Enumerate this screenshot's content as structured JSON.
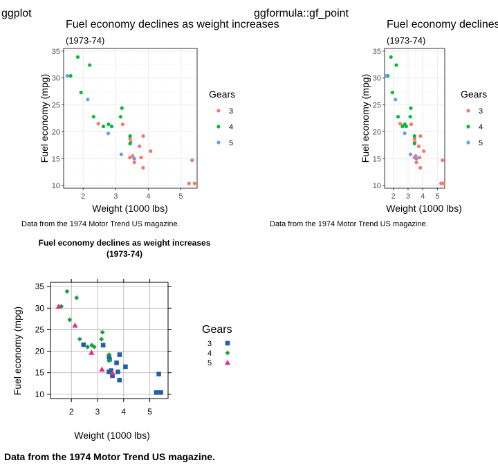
{
  "panels": {
    "ggplot_label": "ggplot",
    "ggformula_label": "ggformula::gf_point"
  },
  "chart_data": [
    {
      "id": "ggplot",
      "type": "scatter",
      "title": "Fuel economy declines as weight increases",
      "subtitle": "(1973-74)",
      "xlabel": "Weight (1000 lbs)",
      "ylabel": "Fuel economy (mpg)",
      "xlim": [
        1.4,
        5.5
      ],
      "ylim": [
        9.5,
        35.5
      ],
      "xticks": [
        2,
        3,
        4,
        5
      ],
      "yticks": [
        10,
        15,
        20,
        25,
        30,
        35
      ],
      "grid": true,
      "legend": {
        "title": "Gears",
        "placement": "right",
        "labels": [
          "3",
          "4",
          "5"
        ]
      },
      "caption": "Data from the 1974 Motor Trend US magazine."
    },
    {
      "id": "gf_point",
      "type": "scatter",
      "title": "Fuel economy declines as weight increases",
      "subtitle": "(1973-74)",
      "xlabel": "Weight (1000 lbs)",
      "ylabel": "Fuel economy (mpg)",
      "xlim": [
        1.4,
        5.5
      ],
      "ylim": [
        9.5,
        35.5
      ],
      "xticks": [
        2,
        3,
        4,
        5
      ],
      "yticks": [
        10,
        15,
        20,
        25,
        30,
        35
      ],
      "grid": true,
      "legend": {
        "title": "Gears",
        "placement": "right",
        "labels": [
          "3",
          "4",
          "5"
        ]
      },
      "caption": "Data from the 1974 Motor Trend US magazine."
    },
    {
      "id": "lattice",
      "type": "scatter",
      "title": "Fuel economy declines as weight increases",
      "subtitle": "(1973-74)",
      "xlabel": "Weight (1000 lbs)",
      "ylabel": "Fuel economy (mpg)",
      "xlim": [
        1.2,
        5.7
      ],
      "ylim": [
        9,
        36
      ],
      "xticks": [
        2,
        3,
        4,
        5
      ],
      "yticks": [
        10,
        15,
        20,
        25,
        30,
        35
      ],
      "grid": true,
      "legend": {
        "title": "Gears",
        "placement": "right",
        "labels": [
          "3",
          "4",
          "5"
        ]
      },
      "caption": "Data from the 1974 Motor Trend US magazine."
    }
  ],
  "series_style": {
    "ggplot": [
      {
        "gear": "3",
        "color": "#F8766D",
        "shape": "circle"
      },
      {
        "gear": "4",
        "color": "#00BA38",
        "shape": "circle"
      },
      {
        "gear": "5",
        "color": "#619CFF",
        "shape": "circle"
      }
    ],
    "lattice": [
      {
        "gear": "3",
        "color": "#1F5FA8",
        "shape": "square"
      },
      {
        "gear": "4",
        "color": "#1B9E3E",
        "shape": "diamond"
      },
      {
        "gear": "5",
        "color": "#E7298A",
        "shape": "triangle"
      }
    ]
  },
  "points": [
    {
      "gear": "3",
      "x": 3.215,
      "y": 21.4
    },
    {
      "gear": "3",
      "x": 3.44,
      "y": 18.7
    },
    {
      "gear": "3",
      "x": 3.46,
      "y": 18.1
    },
    {
      "gear": "3",
      "x": 3.57,
      "y": 14.3
    },
    {
      "gear": "3",
      "x": 4.07,
      "y": 16.4
    },
    {
      "gear": "3",
      "x": 3.73,
      "y": 17.3
    },
    {
      "gear": "3",
      "x": 3.78,
      "y": 15.2
    },
    {
      "gear": "3",
      "x": 5.25,
      "y": 10.4
    },
    {
      "gear": "3",
      "x": 5.424,
      "y": 10.4
    },
    {
      "gear": "3",
      "x": 5.345,
      "y": 14.7
    },
    {
      "gear": "3",
      "x": 2.465,
      "y": 21.5
    },
    {
      "gear": "3",
      "x": 3.52,
      "y": 15.5
    },
    {
      "gear": "3",
      "x": 3.435,
      "y": 15.2
    },
    {
      "gear": "3",
      "x": 3.84,
      "y": 13.3
    },
    {
      "gear": "3",
      "x": 3.845,
      "y": 19.2
    },
    {
      "gear": "4",
      "x": 2.62,
      "y": 21.0
    },
    {
      "gear": "4",
      "x": 2.875,
      "y": 21.0
    },
    {
      "gear": "4",
      "x": 2.32,
      "y": 22.8
    },
    {
      "gear": "4",
      "x": 3.19,
      "y": 24.4
    },
    {
      "gear": "4",
      "x": 3.15,
      "y": 22.8
    },
    {
      "gear": "4",
      "x": 3.44,
      "y": 19.2
    },
    {
      "gear": "4",
      "x": 3.44,
      "y": 17.8
    },
    {
      "gear": "4",
      "x": 2.2,
      "y": 32.4
    },
    {
      "gear": "4",
      "x": 1.615,
      "y": 30.4
    },
    {
      "gear": "4",
      "x": 1.835,
      "y": 33.9
    },
    {
      "gear": "4",
      "x": 1.935,
      "y": 27.3
    },
    {
      "gear": "4",
      "x": 2.78,
      "y": 21.4
    },
    {
      "gear": "5",
      "x": 2.14,
      "y": 26.0
    },
    {
      "gear": "5",
      "x": 1.513,
      "y": 30.4
    },
    {
      "gear": "5",
      "x": 3.17,
      "y": 15.8
    },
    {
      "gear": "5",
      "x": 2.77,
      "y": 19.7
    },
    {
      "gear": "5",
      "x": 3.57,
      "y": 15.0
    }
  ]
}
